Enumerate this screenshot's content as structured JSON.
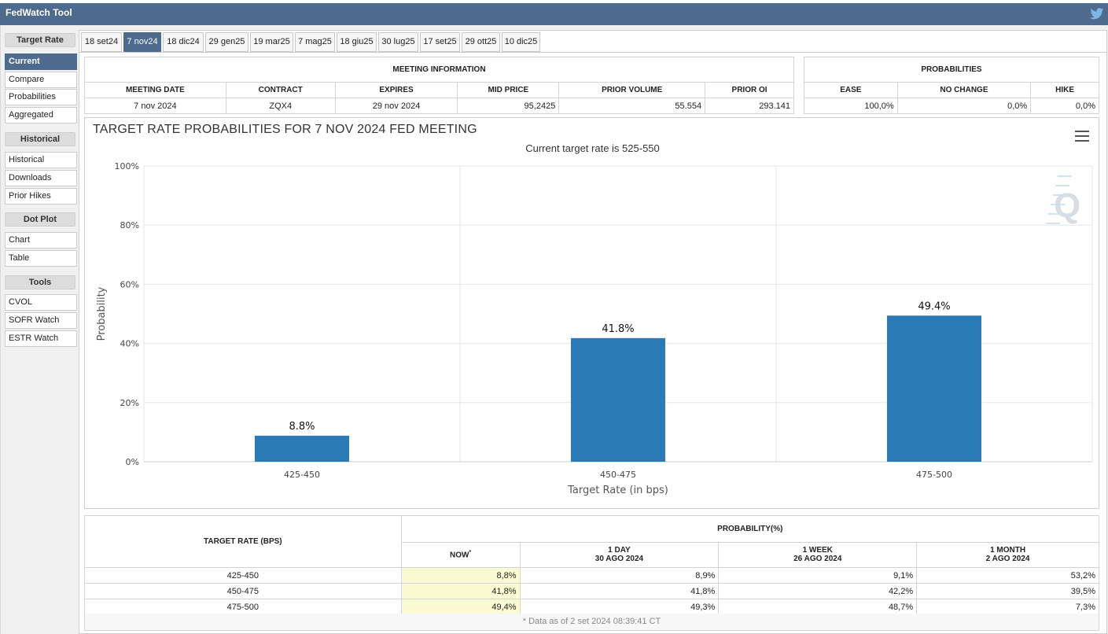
{
  "app": {
    "title": "FedWatch Tool"
  },
  "sidebar": {
    "sections": [
      {
        "head": "Target Rate",
        "items": [
          "Current",
          "Compare",
          "Probabilities",
          "Aggregated"
        ]
      },
      {
        "head": "Historical",
        "items": [
          "Historical",
          "Downloads",
          "Prior Hikes"
        ]
      },
      {
        "head": "Dot Plot",
        "items": [
          "Chart",
          "Table"
        ]
      },
      {
        "head": "Tools",
        "items": [
          "CVOL",
          "SOFR Watch",
          "ESTR Watch"
        ]
      }
    ],
    "active_item": "Current"
  },
  "tabs": [
    "18 set24",
    "7 nov24",
    "18 dic24",
    "29 gen25",
    "19 mar25",
    "7 mag25",
    "18 giu25",
    "30 lug25",
    "17 set25",
    "29 ott25",
    "10 dic25"
  ],
  "active_tab": "7 nov24",
  "meeting_info": {
    "title": "MEETING INFORMATION",
    "headers": [
      "MEETING DATE",
      "CONTRACT",
      "EXPIRES",
      "MID PRICE",
      "PRIOR VOLUME",
      "PRIOR OI"
    ],
    "values": [
      "7 nov 2024",
      "ZQX4",
      "29 nov 2024",
      "95,2425",
      "55.554",
      "293.141"
    ]
  },
  "probabilities": {
    "title": "PROBABILITIES",
    "headers": [
      "EASE",
      "NO CHANGE",
      "HIKE"
    ],
    "values": [
      "100,0%",
      "0,0%",
      "0,0%"
    ]
  },
  "chart_data": {
    "type": "bar",
    "title": "TARGET RATE PROBABILITIES FOR 7 NOV 2024 FED MEETING",
    "subtitle": "Current target rate is 525-550",
    "xlabel": "Target Rate (in bps)",
    "ylabel": "Probability",
    "categories": [
      "425-450",
      "450-475",
      "475-500"
    ],
    "values": [
      8.8,
      41.8,
      49.4
    ],
    "value_labels": [
      "8.8%",
      "41.8%",
      "49.4%"
    ],
    "ylim": [
      0,
      100
    ],
    "yticks": [
      "0%",
      "20%",
      "40%",
      "60%",
      "80%",
      "100%"
    ],
    "grid": true,
    "color": "#2a7ab7"
  },
  "prob_table": {
    "row_header": "TARGET RATE (BPS)",
    "group_header": "PROBABILITY(%)",
    "cols": [
      {
        "l1": "NOW",
        "l2": "",
        "mark": "*"
      },
      {
        "l1": "1 DAY",
        "l2": "30 AGO 2024"
      },
      {
        "l1": "1 WEEK",
        "l2": "26 AGO 2024"
      },
      {
        "l1": "1 MONTH",
        "l2": "2 AGO 2024"
      }
    ],
    "rows": [
      [
        "425-450",
        "8,8%",
        "8,9%",
        "9,1%",
        "53,2%"
      ],
      [
        "450-475",
        "41,8%",
        "41,8%",
        "42,2%",
        "39,5%"
      ],
      [
        "475-500",
        "49,4%",
        "49,3%",
        "48,7%",
        "7,3%"
      ]
    ],
    "footnote": "* Data as of 2 set 2024 08:39:41 CT"
  }
}
